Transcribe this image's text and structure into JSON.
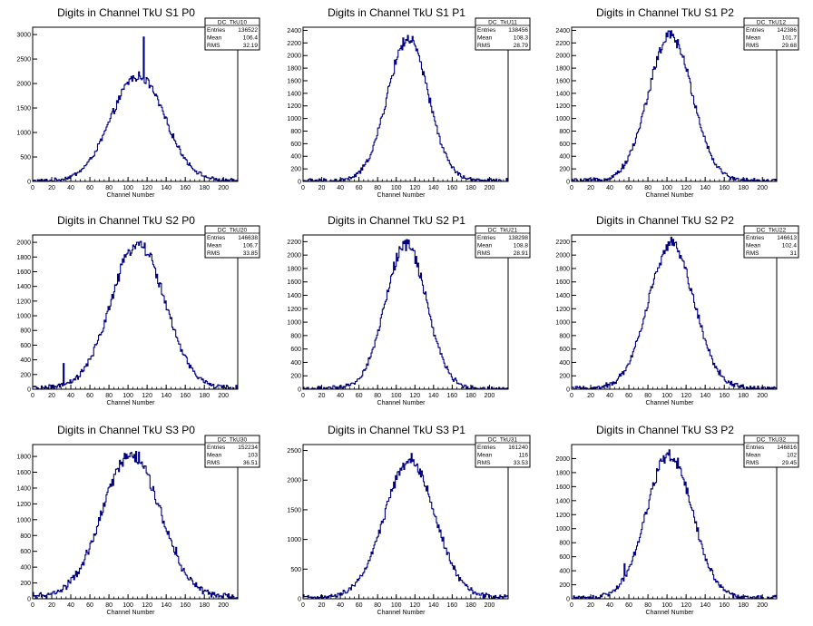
{
  "xlabel_common": "Channel Number",
  "stats_labels": {
    "entries": "Entries",
    "mean": "Mean",
    "rms": "RMS"
  },
  "colors": {
    "line": "#00007f",
    "axis": "#000000",
    "background": "#ffffff"
  },
  "chart_data": [
    {
      "type": "histogram",
      "title": "Digits in Channel TkU S1 P0",
      "xlabel": "Channel Number",
      "xlim": [
        0,
        215
      ],
      "ylim": [
        0,
        3150
      ],
      "xticks": [
        0,
        20,
        40,
        60,
        80,
        100,
        120,
        140,
        160,
        180,
        200
      ],
      "yticks": [
        0,
        500,
        1000,
        1500,
        2000,
        2500,
        3000
      ],
      "stats": {
        "name": "DC_TkU10",
        "entries": "136522",
        "mean": "106.4",
        "rms": "32.19"
      },
      "shape": {
        "center": 110,
        "sigma": 28,
        "peak": 2150,
        "noise": 60
      },
      "spikes": [
        {
          "x": 108,
          "y": 2050
        },
        {
          "x": 112,
          "y": 2150
        },
        {
          "x": 116,
          "y": 2950
        },
        {
          "x": 120,
          "y": 2100
        }
      ]
    },
    {
      "type": "histogram",
      "title": "Digits in Channel TkU S1 P1",
      "xlabel": "Channel Number",
      "xlim": [
        0,
        220
      ],
      "ylim": [
        0,
        2450
      ],
      "xticks": [
        0,
        20,
        40,
        60,
        80,
        100,
        120,
        140,
        160,
        180,
        200
      ],
      "yticks": [
        0,
        200,
        400,
        600,
        800,
        1000,
        1200,
        1400,
        1600,
        1800,
        2000,
        2200,
        2400
      ],
      "stats": {
        "name": "DC_TkU11",
        "entries": "138456",
        "mean": "108.3",
        "rms": "28.79"
      },
      "shape": {
        "center": 112,
        "sigma": 22,
        "peak": 2250,
        "noise": 50
      },
      "spikes": []
    },
    {
      "type": "histogram",
      "title": "Digits in Channel TkU S1 P2",
      "xlabel": "Channel Number",
      "xlim": [
        0,
        215
      ],
      "ylim": [
        0,
        2450
      ],
      "xticks": [
        0,
        20,
        40,
        60,
        80,
        100,
        120,
        140,
        160,
        180,
        200
      ],
      "yticks": [
        0,
        200,
        400,
        600,
        800,
        1000,
        1200,
        1400,
        1600,
        1800,
        2000,
        2200,
        2400
      ],
      "stats": {
        "name": "DC_TkU12",
        "entries": "142386",
        "mean": "101.7",
        "rms": "29.68"
      },
      "shape": {
        "center": 103,
        "sigma": 23,
        "peak": 2300,
        "noise": 60
      },
      "spikes": []
    },
    {
      "type": "histogram",
      "title": "Digits in Channel TkU S2 P0",
      "xlabel": "Channel Number",
      "xlim": [
        0,
        215
      ],
      "ylim": [
        0,
        2100
      ],
      "xticks": [
        0,
        20,
        40,
        60,
        80,
        100,
        120,
        140,
        160,
        180,
        200
      ],
      "yticks": [
        0,
        200,
        400,
        600,
        800,
        1000,
        1200,
        1400,
        1600,
        1800,
        2000
      ],
      "stats": {
        "name": "DC_TkU20",
        "entries": "146638",
        "mean": "106.7",
        "rms": "33.85"
      },
      "shape": {
        "center": 110,
        "sigma": 28,
        "peak": 1970,
        "noise": 70
      },
      "spikes": [
        {
          "x": 32,
          "y": 350
        }
      ]
    },
    {
      "type": "histogram",
      "title": "Digits in Channel TkU S2 P1",
      "xlabel": "Channel Number",
      "xlim": [
        0,
        220
      ],
      "ylim": [
        0,
        2300
      ],
      "xticks": [
        0,
        20,
        40,
        60,
        80,
        100,
        120,
        140,
        160,
        180,
        200
      ],
      "yticks": [
        0,
        200,
        400,
        600,
        800,
        1000,
        1200,
        1400,
        1600,
        1800,
        2000,
        2200
      ],
      "stats": {
        "name": "DC_TkU21",
        "entries": "138298",
        "mean": "108.8",
        "rms": "28.91"
      },
      "shape": {
        "center": 110,
        "sigma": 22,
        "peak": 2150,
        "noise": 50
      },
      "spikes": []
    },
    {
      "type": "histogram",
      "title": "Digits in Channel TkU S2 P2",
      "xlabel": "Channel Number",
      "xlim": [
        0,
        215
      ],
      "ylim": [
        0,
        2300
      ],
      "xticks": [
        0,
        20,
        40,
        60,
        80,
        100,
        120,
        140,
        160,
        180,
        200
      ],
      "yticks": [
        0,
        200,
        400,
        600,
        800,
        1000,
        1200,
        1400,
        1600,
        1800,
        2000,
        2200
      ],
      "stats": {
        "name": "DC_TkU22",
        "entries": "146613",
        "mean": "102.4",
        "rms": "31"
      },
      "shape": {
        "center": 104,
        "sigma": 24,
        "peak": 2150,
        "noise": 70
      },
      "spikes": []
    },
    {
      "type": "histogram",
      "title": "Digits in Channel TkU S3 P0",
      "xlabel": "Channel Number",
      "xlim": [
        0,
        215
      ],
      "ylim": [
        0,
        1950
      ],
      "xticks": [
        0,
        20,
        40,
        60,
        80,
        100,
        120,
        140,
        160,
        180,
        200
      ],
      "yticks": [
        0,
        200,
        400,
        600,
        800,
        1000,
        1200,
        1400,
        1600,
        1800
      ],
      "stats": {
        "name": "DC_TkU30",
        "entries": "152234",
        "mean": "103",
        "rms": "36.51"
      },
      "shape": {
        "center": 103,
        "sigma": 30,
        "peak": 1800,
        "noise": 120
      },
      "spikes": [
        {
          "x": 103,
          "y": 1850
        },
        {
          "x": 150,
          "y": 650
        }
      ]
    },
    {
      "type": "histogram",
      "title": "Digits in Channel TkU S3 P1",
      "xlabel": "Channel Number",
      "xlim": [
        0,
        220
      ],
      "ylim": [
        0,
        2600
      ],
      "xticks": [
        0,
        20,
        40,
        60,
        80,
        100,
        120,
        140,
        160,
        180,
        200
      ],
      "yticks": [
        0,
        500,
        1000,
        1500,
        2000,
        2500
      ],
      "stats": {
        "name": "DC_TkU31",
        "entries": "161240",
        "mean": "116",
        "rms": "33.53"
      },
      "shape": {
        "center": 114,
        "sigma": 27,
        "peak": 2300,
        "noise": 120
      },
      "spikes": [
        {
          "x": 116,
          "y": 2450
        }
      ]
    },
    {
      "type": "histogram",
      "title": "Digits in Channel TkU S3 P2",
      "xlabel": "Channel Number",
      "xlim": [
        0,
        215
      ],
      "ylim": [
        0,
        2200
      ],
      "xticks": [
        0,
        20,
        40,
        60,
        80,
        100,
        120,
        140,
        160,
        180,
        200
      ],
      "yticks": [
        0,
        200,
        400,
        600,
        800,
        1000,
        1200,
        1400,
        1600,
        1800,
        2000
      ],
      "stats": {
        "name": "DC_TkU32",
        "entries": "146816",
        "mean": "102",
        "rms": "29.45"
      },
      "shape": {
        "center": 102,
        "sigma": 24,
        "peak": 2050,
        "noise": 60
      },
      "spikes": [
        {
          "x": 55,
          "y": 500
        }
      ]
    }
  ]
}
